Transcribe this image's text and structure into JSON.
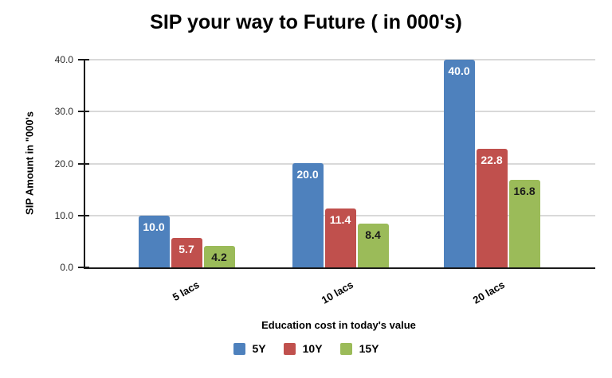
{
  "chart_data": {
    "type": "bar",
    "title": "SIP your way to Future ( in 000's)",
    "xlabel": "Education cost in today's value",
    "ylabel": "SIP Amount in \"000's",
    "categories": [
      "5 lacs",
      "10 lacs",
      "20 lacs"
    ],
    "series": [
      {
        "name": "5Y",
        "color": "#4E81BD",
        "label_color": "#ffffff",
        "values": [
          10.0,
          20.0,
          40.0
        ]
      },
      {
        "name": "10Y",
        "color": "#C0504D",
        "label_color": "#ffffff",
        "values": [
          5.7,
          11.4,
          22.8
        ]
      },
      {
        "name": "15Y",
        "color": "#9BBB59",
        "label_color": "#1a1a1a",
        "values": [
          4.2,
          8.4,
          16.8
        ]
      }
    ],
    "ylim": [
      0,
      40
    ],
    "ytick_step": 10,
    "ytick_labels": [
      "0.0",
      "10.0",
      "20.0",
      "30.0",
      "40.0"
    ],
    "grid": true,
    "legend_position": "bottom"
  },
  "style_colors": {
    "gridline": "#d9d9d9",
    "axis": "#1a1a1a",
    "tick_text": "#262626"
  }
}
